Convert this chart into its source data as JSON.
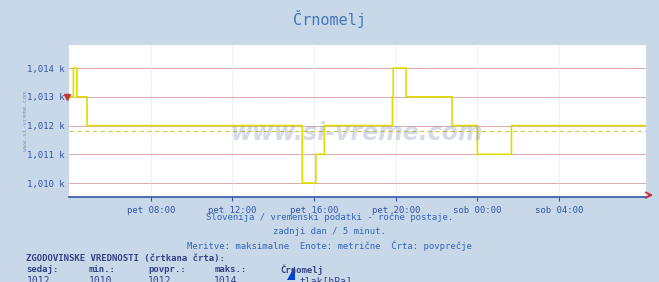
{
  "title": "Črnomelj",
  "title_color": "#4477bb",
  "bg_color": "#c8d8e8",
  "plot_bg_color": "#ffffff",
  "line_color": "#dddd00",
  "dashed_line_color": "#dd9999",
  "axis_color": "#3355aa",
  "text_color": "#3366bb",
  "grid_h_color": "#ddaaaa",
  "grid_v_color": "#ddddcc",
  "ylim_min": 1009.5,
  "ylim_max": 1014.8,
  "yticks": [
    1010,
    1011,
    1012,
    1013,
    1014
  ],
  "ytick_labels": [
    "1,010 k",
    "1,011 k",
    "1,012 k",
    "1,013 k",
    "1,014 k"
  ],
  "xtick_labels": [
    "pet 08:00",
    "pet 12:00",
    "pet 16:00",
    "pet 20:00",
    "sob 00:00",
    "sob 04:00"
  ],
  "xtick_positions": [
    96,
    192,
    288,
    384,
    480,
    576
  ],
  "total_points": 672,
  "dashed_value": 1011.8,
  "subtitle1": "Slovenija / vremenski podatki - ročne postaje.",
  "subtitle2": "zadnji dan / 5 minut.",
  "subtitle3": "Meritve: maksimalne  Enote: metrične  Črta: povprečje",
  "legend_title": "ZGODOVINSKE VREDNOSTI (črtkana črta):",
  "legend_col1_header": "sedaj:",
  "legend_col2_header": "min.:",
  "legend_col3_header": "povpr.:",
  "legend_col4_header": "maks.:",
  "legend_col5_header": "Črnomelj",
  "legend_col1_value": "1012",
  "legend_col2_value": "1010",
  "legend_col3_value": "1012",
  "legend_col4_value": "1014",
  "legend_col5_value": "tlak[hPa]",
  "watermark": "www.si-vreme.com",
  "watermark_left": "www.si-vreme.com",
  "pressure_data": [
    1013,
    1013,
    1013,
    1013,
    1013,
    1014,
    1014,
    1014,
    1014,
    1013,
    1013,
    1013,
    1013,
    1013,
    1013,
    1013,
    1013,
    1013,
    1013,
    1013,
    1013,
    1012,
    1012,
    1012,
    1012,
    1012,
    1012,
    1012,
    1012,
    1012,
    1012,
    1012,
    1012,
    1012,
    1012,
    1012,
    1012,
    1012,
    1012,
    1012,
    1012,
    1012,
    1012,
    1012,
    1012,
    1012,
    1012,
    1012,
    1012,
    1012,
    1012,
    1012,
    1012,
    1012,
    1012,
    1012,
    1012,
    1012,
    1012,
    1012,
    1012,
    1012,
    1012,
    1012,
    1012,
    1012,
    1012,
    1012,
    1012,
    1012,
    1012,
    1012,
    1012,
    1012,
    1012,
    1012,
    1012,
    1012,
    1012,
    1012,
    1012,
    1012,
    1012,
    1012,
    1012,
    1012,
    1012,
    1012,
    1012,
    1012,
    1012,
    1012,
    1012,
    1012,
    1012,
    1012,
    1012,
    1012,
    1012,
    1012,
    1012,
    1012,
    1012,
    1012,
    1012,
    1012,
    1012,
    1012,
    1012,
    1012,
    1012,
    1012,
    1012,
    1012,
    1012,
    1012,
    1012,
    1012,
    1012,
    1012,
    1012,
    1012,
    1012,
    1012,
    1012,
    1012,
    1012,
    1012,
    1012,
    1012,
    1012,
    1012,
    1012,
    1012,
    1012,
    1012,
    1012,
    1012,
    1012,
    1012,
    1012,
    1012,
    1012,
    1012,
    1012,
    1012,
    1012,
    1012,
    1012,
    1012,
    1012,
    1012,
    1012,
    1012,
    1012,
    1012,
    1012,
    1012,
    1012,
    1012,
    1012,
    1012,
    1012,
    1012,
    1012,
    1012,
    1012,
    1012,
    1012,
    1012,
    1012,
    1012,
    1012,
    1012,
    1012,
    1012,
    1012,
    1012,
    1012,
    1012,
    1012,
    1012,
    1012,
    1012,
    1012,
    1012,
    1012,
    1012,
    1012,
    1012,
    1012,
    1012,
    1012,
    1012,
    1012,
    1012,
    1012,
    1012,
    1012,
    1012,
    1012,
    1012,
    1012,
    1012,
    1012,
    1012,
    1012,
    1012,
    1012,
    1012,
    1012,
    1012,
    1012,
    1012,
    1012,
    1012,
    1012,
    1012,
    1012,
    1012,
    1012,
    1012,
    1012,
    1012,
    1012,
    1012,
    1012,
    1012,
    1012,
    1012,
    1012,
    1012,
    1012,
    1012,
    1012,
    1012,
    1012,
    1012,
    1012,
    1012,
    1012,
    1012,
    1012,
    1012,
    1012,
    1012,
    1012,
    1012,
    1012,
    1012,
    1012,
    1012,
    1012,
    1012,
    1012,
    1012,
    1012,
    1012,
    1012,
    1012,
    1012,
    1012,
    1012,
    1012,
    1012,
    1012,
    1012,
    1012,
    1012,
    1012,
    1012,
    1012,
    1012,
    1012,
    1010,
    1010,
    1010,
    1010,
    1010,
    1010,
    1010,
    1010,
    1010,
    1010,
    1010,
    1010,
    1010,
    1010,
    1010,
    1010,
    1011,
    1011,
    1011,
    1011,
    1011,
    1011,
    1011,
    1011,
    1011,
    1011,
    1012,
    1012,
    1012,
    1012,
    1012,
    1012,
    1012,
    1012,
    1012,
    1012,
    1012,
    1012,
    1012,
    1012,
    1012,
    1012,
    1012,
    1012,
    1012,
    1012,
    1012,
    1012,
    1012,
    1012,
    1012,
    1012,
    1012,
    1012,
    1012,
    1012,
    1012,
    1012,
    1012,
    1012,
    1012,
    1012,
    1012,
    1012,
    1012,
    1012,
    1012,
    1012,
    1012,
    1012,
    1012,
    1012,
    1012,
    1012,
    1012,
    1012,
    1012,
    1012,
    1012,
    1012,
    1012,
    1012,
    1012,
    1012,
    1012,
    1012,
    1012,
    1012,
    1012,
    1012,
    1012,
    1012,
    1012,
    1012,
    1012,
    1012,
    1012,
    1012,
    1012,
    1012,
    1012,
    1012,
    1012,
    1012,
    1012,
    1012,
    1013,
    1014,
    1014,
    1014,
    1014,
    1014,
    1014,
    1014,
    1014,
    1014,
    1014,
    1014,
    1014,
    1014,
    1014,
    1014,
    1013,
    1013,
    1013,
    1013,
    1013,
    1013,
    1013,
    1013,
    1013,
    1013,
    1013,
    1013,
    1013,
    1013,
    1013,
    1013,
    1013,
    1013,
    1013,
    1013,
    1013,
    1013,
    1013,
    1013,
    1013,
    1013,
    1013,
    1013,
    1013,
    1013,
    1013,
    1013,
    1013,
    1013,
    1013,
    1013,
    1013,
    1013,
    1013,
    1013,
    1013,
    1013,
    1013,
    1013,
    1013,
    1013,
    1013,
    1013,
    1013,
    1013,
    1013,
    1013,
    1013,
    1013,
    1012,
    1012,
    1012,
    1012,
    1012,
    1012,
    1012,
    1012,
    1012,
    1012,
    1012,
    1012,
    1012,
    1012,
    1012,
    1012,
    1012,
    1012,
    1012,
    1012,
    1012,
    1012,
    1012,
    1012,
    1012,
    1012,
    1012,
    1012,
    1012,
    1012,
    1011,
    1011,
    1011,
    1011,
    1011,
    1011,
    1011,
    1011,
    1011,
    1011,
    1011,
    1011,
    1011,
    1011,
    1011,
    1011,
    1011,
    1011,
    1011,
    1011,
    1011,
    1011,
    1011,
    1011,
    1011,
    1011,
    1011,
    1011,
    1011,
    1011,
    1011,
    1011,
    1011,
    1011,
    1011,
    1011,
    1011,
    1011,
    1011,
    1011,
    1012,
    1012,
    1012,
    1012,
    1012,
    1012,
    1012,
    1012,
    1012,
    1012,
    1012,
    1012,
    1012,
    1012,
    1012,
    1012,
    1012,
    1012,
    1012,
    1012,
    1012,
    1012,
    1012,
    1012,
    1012,
    1012,
    1012,
    1012,
    1012,
    1012,
    1012,
    1012,
    1012,
    1012,
    1012,
    1012,
    1012,
    1012,
    1012,
    1012,
    1012,
    1012,
    1012,
    1012,
    1012,
    1012,
    1012,
    1012,
    1012,
    1012,
    1012,
    1012,
    1012,
    1012,
    1012,
    1012,
    1012,
    1012,
    1012,
    1012,
    1012,
    1012,
    1012,
    1012,
    1012,
    1012,
    1012,
    1012,
    1012,
    1012,
    1012,
    1012,
    1012,
    1012,
    1012,
    1012,
    1012,
    1012,
    1012,
    1012,
    1012,
    1012,
    1012,
    1012,
    1012,
    1012,
    1012,
    1012,
    1012,
    1012,
    1012,
    1012,
    1012,
    1012,
    1012,
    1012,
    1012,
    1012,
    1012,
    1012,
    1012,
    1012,
    1012,
    1012,
    1012,
    1012,
    1012,
    1012,
    1012,
    1012,
    1012,
    1012,
    1012,
    1012,
    1012,
    1012,
    1012,
    1012,
    1012,
    1012,
    1012,
    1012,
    1012,
    1012,
    1012,
    1012,
    1012,
    1012,
    1012,
    1012,
    1012,
    1012,
    1012,
    1012,
    1012,
    1012,
    1012,
    1012,
    1012,
    1012,
    1012,
    1012,
    1012,
    1012,
    1012,
    1012,
    1012,
    1012,
    1012,
    1012,
    1012,
    1012,
    1012,
    1012,
    1012,
    1012,
    1012,
    1012
  ]
}
